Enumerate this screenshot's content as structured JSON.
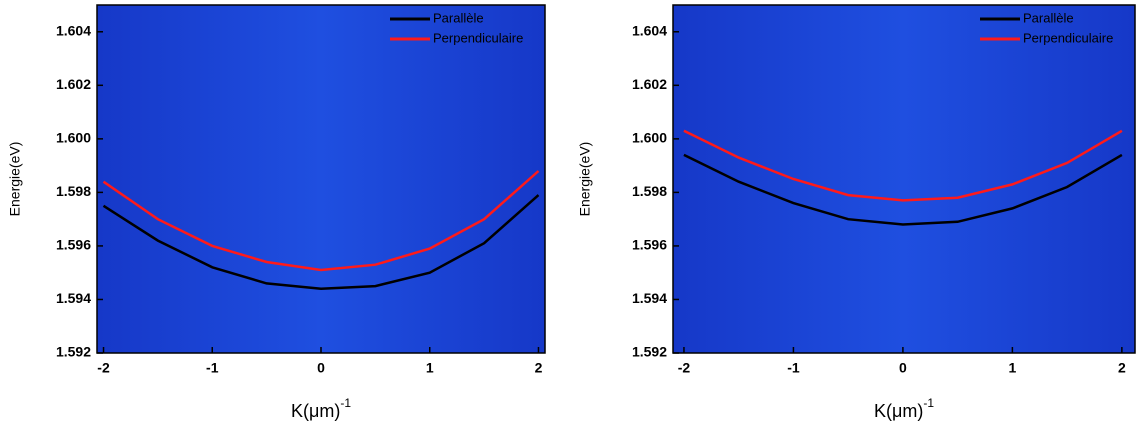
{
  "chart_data": [
    {
      "type": "line",
      "y_label": "Energie(eV)",
      "x_label": "K(μm)",
      "x_label_superscript": "-1",
      "x": [
        -2,
        -1.5,
        -1,
        -0.5,
        0,
        0.5,
        1,
        1.5,
        2
      ],
      "series": [
        {
          "name": "Parallèle",
          "color": "#000000",
          "values": [
            1.5975,
            1.5962,
            1.5952,
            1.5946,
            1.5944,
            1.5945,
            1.595,
            1.5961,
            1.5979
          ]
        },
        {
          "name": "Perpendiculaire",
          "color": "#ff1a1a",
          "values": [
            1.5984,
            1.597,
            1.596,
            1.5954,
            1.5951,
            1.5953,
            1.5959,
            1.597,
            1.5988
          ]
        }
      ],
      "xlim": [
        -2.06,
        2.06
      ],
      "xticks": [
        -2,
        -1,
        0,
        1,
        2
      ],
      "ylim": [
        1.592,
        1.605
      ],
      "yticks": [
        1.592,
        1.594,
        1.596,
        1.598,
        {
          "value": 1.6,
          "label": "1.600"
        },
        1.602,
        1.604
      ],
      "legend": "top-right"
    },
    {
      "type": "line",
      "y_label": "Energie(eV)",
      "x_label": "K(μm)",
      "x_label_superscript": "-1",
      "x": [
        -2,
        -1.5,
        -1,
        -0.5,
        0,
        0.5,
        1,
        1.5,
        2
      ],
      "series": [
        {
          "name": "Parallèle",
          "color": "#000000",
          "values": [
            1.5994,
            1.5984,
            1.5976,
            1.597,
            1.5968,
            1.5969,
            1.5974,
            1.5982,
            1.5994
          ]
        },
        {
          "name": "Perpendiculaire",
          "color": "#ff1a1a",
          "values": [
            1.6003,
            1.5993,
            1.5985,
            1.5979,
            1.5977,
            1.5978,
            1.5983,
            1.5991,
            1.6003
          ]
        }
      ],
      "xlim": [
        -2.1,
        2.12
      ],
      "xticks": [
        -2,
        -1,
        0,
        1,
        2
      ],
      "ylim": [
        1.592,
        1.605
      ],
      "yticks": [
        1.592,
        1.594,
        1.596,
        1.598,
        {
          "value": 1.6,
          "label": "1.600"
        },
        1.602,
        1.604
      ],
      "legend": "top-right"
    }
  ]
}
